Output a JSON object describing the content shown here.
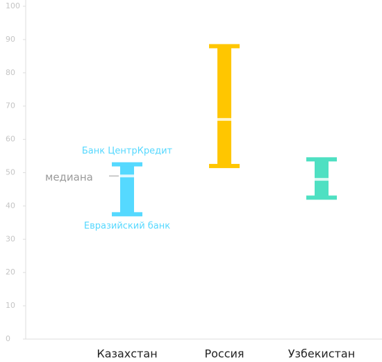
{
  "chart_data": {
    "type": "range",
    "categories": [
      "Казахстан",
      "Россия",
      "Узбекистан"
    ],
    "low": [
      37.5,
      52,
      42.5
    ],
    "high": [
      52.5,
      88,
      54
    ],
    "median": [
      49,
      66,
      48
    ],
    "colors": [
      "#55d9ff",
      "#ffc600",
      "#4ee0c2"
    ],
    "annotations": [
      "Банк ЦентрКредит",
      "Евразийский банк",
      "медиана"
    ],
    "ylim": [
      0,
      100
    ],
    "yticks": [
      0,
      10,
      20,
      30,
      40,
      50,
      60,
      70,
      80,
      90,
      100
    ]
  }
}
